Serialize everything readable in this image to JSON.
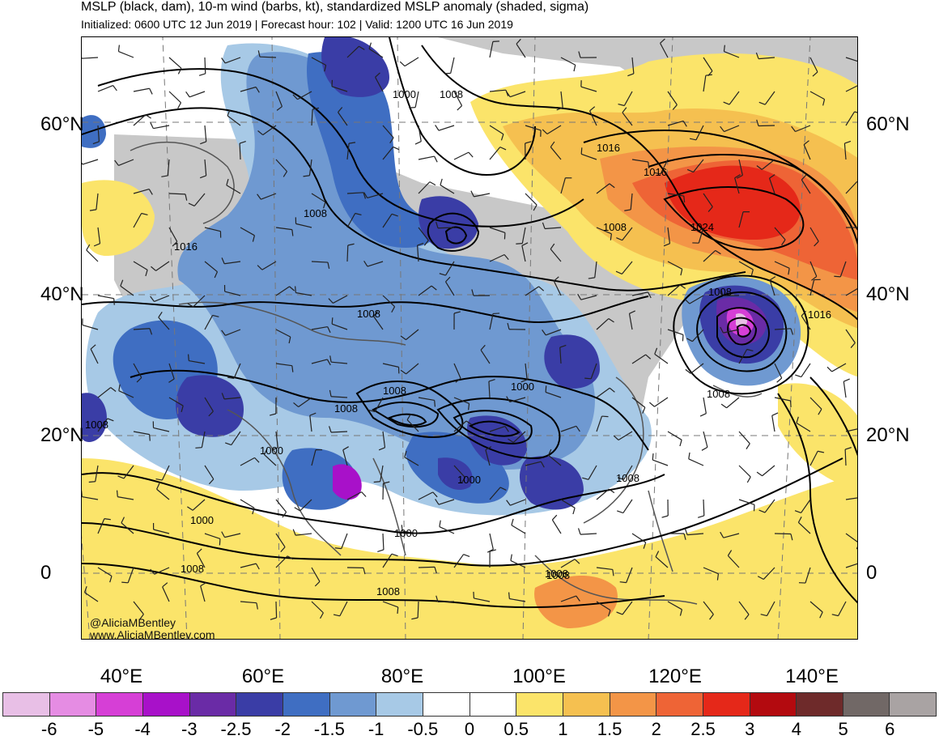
{
  "header": {
    "title": "MSLP (black, dam), 10-m wind (barbs, kt), standardized MSLP anomaly (shaded, sigma)",
    "subtitle": "Initialized: 0600 UTC 12 Jun 2019 | Forecast hour: 102 | Valid: 1200 UTC 16 Jun 2019"
  },
  "map": {
    "region": "Asia",
    "lat_labels_left": [
      "60°N",
      "40°N",
      "20°N",
      "0"
    ],
    "lat_labels_right": [
      "60°N",
      "40°N",
      "20°N",
      "0"
    ],
    "lon_labels": [
      "40°E",
      "60°E",
      "80°E",
      "100°E",
      "120°E",
      "140°E"
    ],
    "contour_labels": [
      {
        "text": "1000"
      },
      {
        "text": "1008"
      },
      {
        "text": "1016"
      },
      {
        "text": "1016"
      },
      {
        "text": "1016"
      },
      {
        "text": "1024"
      },
      {
        "text": "1008"
      },
      {
        "text": "1008"
      },
      {
        "text": "1016"
      },
      {
        "text": "1008"
      },
      {
        "text": "1008"
      },
      {
        "text": "1008"
      },
      {
        "text": "1008"
      },
      {
        "text": "1008"
      },
      {
        "text": "1000"
      },
      {
        "text": "1008"
      },
      {
        "text": "1000"
      },
      {
        "text": "1000"
      },
      {
        "text": "1000"
      },
      {
        "text": "1000"
      },
      {
        "text": "1008"
      },
      {
        "text": "1008"
      },
      {
        "text": "1008"
      },
      {
        "text": "1008"
      },
      {
        "text": "1008"
      }
    ],
    "credit_handle": "@AliciaMBentley",
    "credit_site": "www.AliciaMBentley.com"
  },
  "colorbar": {
    "labels": [
      "-6",
      "-5",
      "-4",
      "-3",
      "-2.5",
      "-2",
      "-1.5",
      "-1",
      "-0.5",
      "0",
      "0.5",
      "1",
      "1.5",
      "2",
      "2.5",
      "3",
      "4",
      "5",
      "6"
    ],
    "colors": [
      "#e8bfe6",
      "#e58ce3",
      "#d63fd6",
      "#a811c9",
      "#6a2ba6",
      "#3a3da6",
      "#3f6ec2",
      "#6f99d1",
      "#a7c9e6",
      "#ffffff",
      "#ffffff",
      "#fbe46a",
      "#f5c050",
      "#f39547",
      "#ee6436",
      "#e52819",
      "#b30a0f",
      "#6e2a2a",
      "#716866",
      "#a9a3a3"
    ]
  }
}
